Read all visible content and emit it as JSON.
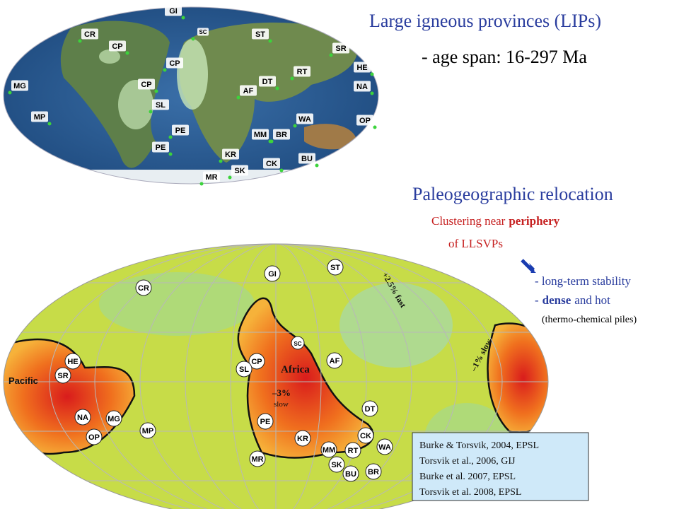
{
  "title": "Large igneous provinces (LIPs)",
  "subtitle": "- age span: 16-297 Ma",
  "section_heading": "Paleogeographic relocation",
  "clustering": {
    "lead": "Clustering near",
    "highlight": "periphery",
    "line2": "of LLSVPs"
  },
  "bullets": {
    "first": "- long-term stability",
    "second": {
      "dash": "-",
      "bold": "dense",
      "rest": "and hot"
    },
    "note": "(thermo-chemical piles)"
  },
  "references": [
    "Burke & Torsvik, 2004, EPSL",
    "Torsvik et al., 2006, GIJ",
    "Burke et al. 2007, EPSL",
    "Torsvik et al. 2008, EPSL"
  ],
  "top_map": {
    "labels": [
      "CR",
      "GI",
      "SC",
      "ST",
      "SR",
      "CP",
      "CP",
      "HE",
      "RT",
      "NA",
      "MG",
      "DT",
      "AF",
      "CP",
      "SL",
      "MP",
      "WA",
      "OP",
      "PE",
      "MM",
      "BR",
      "PE",
      "KR",
      "BU",
      "SK",
      "CK",
      "MR"
    ]
  },
  "bottom_map": {
    "labels": [
      "GI",
      "ST",
      "CR",
      "SC",
      "HE",
      "CP",
      "AF",
      "SL",
      "SR",
      "DT",
      "NA",
      "MG",
      "PE",
      "OP",
      "MP",
      "CK",
      "KR",
      "WA",
      "RT",
      "MM",
      "MR",
      "SK",
      "BR",
      "BU"
    ],
    "regions": {
      "pacific": "Pacific",
      "africa": "Africa"
    },
    "anomalies": {
      "africa_value": "–3%",
      "africa_word": "slow",
      "fast": "+2.5% fast",
      "slow": "–1% slow"
    }
  }
}
